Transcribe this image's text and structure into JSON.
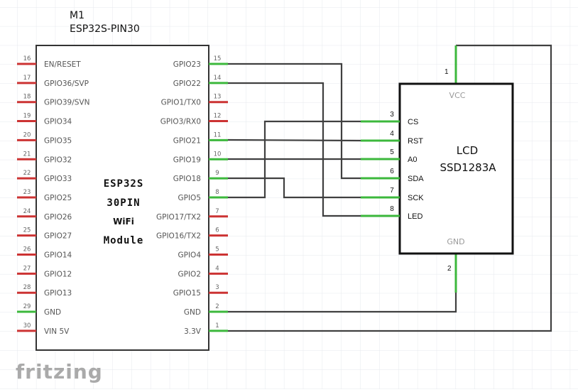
{
  "module": {
    "ref": "M1",
    "part": "ESP32S-PIN30",
    "body_lines": [
      "ESP32S",
      "30PIN",
      "WiFi",
      "Module"
    ],
    "left_pins": [
      {
        "num": "16",
        "label": "EN/RESET",
        "connected": false
      },
      {
        "num": "17",
        "label": "GPIO36/SVP",
        "connected": false
      },
      {
        "num": "18",
        "label": "GPIO39/SVN",
        "connected": false
      },
      {
        "num": "19",
        "label": "GPIO34",
        "connected": false
      },
      {
        "num": "20",
        "label": "GPIO35",
        "connected": false
      },
      {
        "num": "21",
        "label": "GPIO32",
        "connected": false
      },
      {
        "num": "22",
        "label": "GPIO33",
        "connected": false
      },
      {
        "num": "23",
        "label": "GPIO25",
        "connected": false
      },
      {
        "num": "24",
        "label": "GPIO26",
        "connected": false
      },
      {
        "num": "25",
        "label": "GPIO27",
        "connected": false
      },
      {
        "num": "26",
        "label": "GPIO14",
        "connected": false
      },
      {
        "num": "27",
        "label": "GPIO12",
        "connected": false
      },
      {
        "num": "28",
        "label": "GPIO13",
        "connected": false
      },
      {
        "num": "29",
        "label": "GND",
        "connected": true
      },
      {
        "num": "30",
        "label": "VIN 5V",
        "connected": false
      }
    ],
    "right_pins": [
      {
        "num": "15",
        "label": "GPIO23",
        "connected": true
      },
      {
        "num": "14",
        "label": "GPIO22",
        "connected": true
      },
      {
        "num": "13",
        "label": "GPIO1/TX0",
        "connected": false
      },
      {
        "num": "12",
        "label": "GPIO3/RX0",
        "connected": false
      },
      {
        "num": "11",
        "label": "GPIO21",
        "connected": true
      },
      {
        "num": "10",
        "label": "GPIO19",
        "connected": true
      },
      {
        "num": "9",
        "label": "GPIO18",
        "connected": true
      },
      {
        "num": "8",
        "label": "GPIO5",
        "connected": true
      },
      {
        "num": "7",
        "label": "GPIO17/TX2",
        "connected": false
      },
      {
        "num": "6",
        "label": "GPIO16/TX2",
        "connected": false
      },
      {
        "num": "5",
        "label": "GPIO4",
        "connected": false
      },
      {
        "num": "4",
        "label": "GPIO2",
        "connected": false
      },
      {
        "num": "3",
        "label": "GPIO15",
        "connected": false
      },
      {
        "num": "2",
        "label": "GND",
        "connected": true
      },
      {
        "num": "1",
        "label": "3.3V",
        "connected": true
      }
    ]
  },
  "lcd": {
    "title": "LCD",
    "part": "SSD1283A",
    "vcc": {
      "num": "1",
      "label": "VCC"
    },
    "gnd": {
      "num": "2",
      "label": "GND"
    },
    "left_pins": [
      {
        "num": "3",
        "label": "CS"
      },
      {
        "num": "4",
        "label": "RST"
      },
      {
        "num": "5",
        "label": "A0"
      },
      {
        "num": "6",
        "label": "SDA"
      },
      {
        "num": "7",
        "label": "SCK"
      },
      {
        "num": "8",
        "label": "LED"
      }
    ]
  },
  "connections": [
    {
      "from": "GPIO23",
      "to": "SDA"
    },
    {
      "from": "GPIO22",
      "to": "LED"
    },
    {
      "from": "GPIO21",
      "to": "RST"
    },
    {
      "from": "GPIO19",
      "to": "A0"
    },
    {
      "from": "GPIO18",
      "to": "SCK"
    },
    {
      "from": "GPIO5",
      "to": "CS"
    },
    {
      "from": "GND",
      "to": "GND"
    },
    {
      "from": "3.3V",
      "to": "VCC"
    }
  ],
  "watermark": "fritzing",
  "colors": {
    "unconnected_pin": "#cc3333",
    "connected_pin": "#3cb83c",
    "wire": "#404040",
    "grid": "#e6e9ee"
  }
}
